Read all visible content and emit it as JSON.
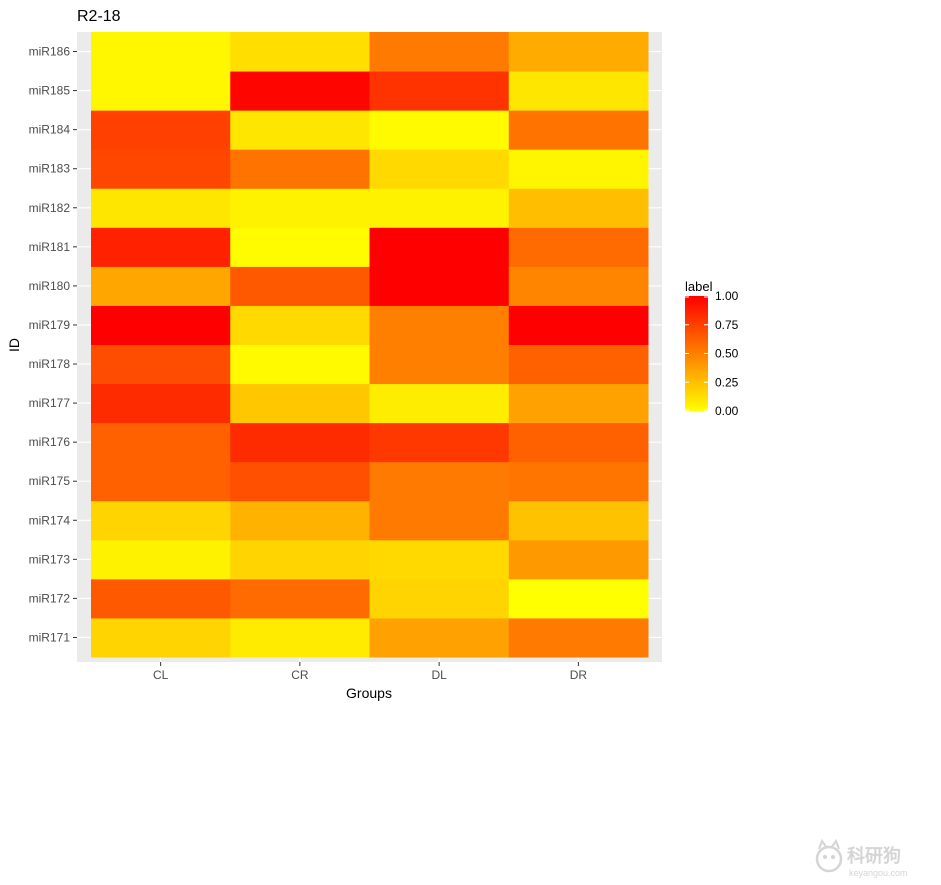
{
  "chart_data": {
    "type": "heatmap",
    "title": "R2-18",
    "xlabel": "Groups",
    "ylabel": "ID",
    "x": [
      "CL",
      "CR",
      "DL",
      "DR"
    ],
    "y": [
      "miR171",
      "miR172",
      "miR173",
      "miR174",
      "miR175",
      "miR176",
      "miR177",
      "miR178",
      "miR179",
      "miR180",
      "miR181",
      "miR182",
      "miR183",
      "miR184",
      "miR185",
      "miR186"
    ],
    "values": [
      [
        0.17,
        0.08,
        0.37,
        0.52
      ],
      [
        0.65,
        0.58,
        0.17,
        0.0
      ],
      [
        0.05,
        0.17,
        0.15,
        0.4
      ],
      [
        0.17,
        0.3,
        0.52,
        0.24
      ],
      [
        0.62,
        0.69,
        0.52,
        0.54
      ],
      [
        0.62,
        0.83,
        0.78,
        0.62
      ],
      [
        0.83,
        0.22,
        0.07,
        0.37
      ],
      [
        0.7,
        0.02,
        0.5,
        0.62
      ],
      [
        1.0,
        0.15,
        0.5,
        1.0
      ],
      [
        0.35,
        0.65,
        1.0,
        0.48
      ],
      [
        0.87,
        0.01,
        1.0,
        0.58
      ],
      [
        0.1,
        0.05,
        0.05,
        0.25
      ],
      [
        0.72,
        0.55,
        0.15,
        0.04
      ],
      [
        0.75,
        0.1,
        0.02,
        0.55
      ],
      [
        0.03,
        0.98,
        0.8,
        0.1
      ],
      [
        0.03,
        0.13,
        0.52,
        0.33
      ]
    ],
    "zlim": [
      0,
      1
    ],
    "grid": true,
    "legend": {
      "title": "label",
      "position": "right",
      "ticks": [
        "0.00",
        "0.25",
        "0.50",
        "0.75",
        "1.00"
      ],
      "low_color": "#ffff00",
      "high_color": "#ff0000"
    },
    "panel_background": "#ebebeb"
  },
  "watermark": {
    "text": "科研狗",
    "subtext": "keyangou.com"
  }
}
